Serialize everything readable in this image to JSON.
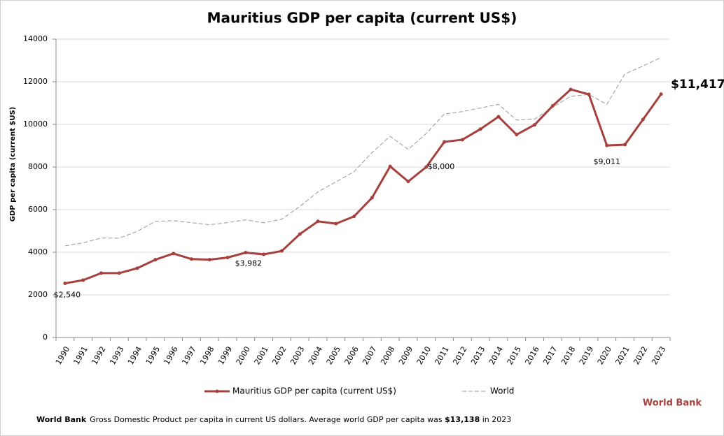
{
  "chart_data": {
    "type": "line",
    "title": "Mauritius GDP per capita (current US$)",
    "y_label": "GDP per capita (current $US)",
    "categories": [
      "1990",
      "1991",
      "1992",
      "1993",
      "1994",
      "1995",
      "1996",
      "1997",
      "1998",
      "1999",
      "2000",
      "2001",
      "2002",
      "2003",
      "2004",
      "2005",
      "2006",
      "2007",
      "2008",
      "2009",
      "2010",
      "2011",
      "2012",
      "2013",
      "2014",
      "2015",
      "2016",
      "2017",
      "2018",
      "2019",
      "2020",
      "2021",
      "2022",
      "2023"
    ],
    "series": [
      {
        "name": "Mauritius GDP per capita (current US$)",
        "color": "#a5403d",
        "style": "solid",
        "values": [
          2540,
          2690,
          3020,
          3020,
          3250,
          3650,
          3940,
          3680,
          3650,
          3750,
          3982,
          3900,
          4060,
          4850,
          5450,
          5340,
          5680,
          6560,
          8030,
          7320,
          8000,
          9180,
          9280,
          9780,
          10360,
          9520,
          9980,
          10870,
          11640,
          11410,
          9011,
          9050,
          10230,
          11417
        ],
        "value_labels": [
          "$2,540",
          null,
          null,
          null,
          null,
          null,
          null,
          null,
          null,
          null,
          "$3,982",
          null,
          null,
          null,
          null,
          null,
          null,
          null,
          null,
          null,
          "$8,000",
          null,
          null,
          null,
          null,
          null,
          null,
          null,
          null,
          null,
          "$9,011",
          null,
          null,
          "$11,417"
        ]
      },
      {
        "name": "World",
        "color": "#999999",
        "style": "dashed",
        "values": [
          4300,
          4440,
          4670,
          4660,
          4980,
          5450,
          5480,
          5390,
          5290,
          5390,
          5520,
          5380,
          5550,
          6150,
          6830,
          7300,
          7780,
          8680,
          9440,
          8830,
          9570,
          10490,
          10600,
          10770,
          10940,
          10200,
          10250,
          10800,
          11320,
          11400,
          10940,
          12370,
          12740,
          13138
        ]
      }
    ],
    "ylim": [
      0,
      14000
    ],
    "yticks": [
      0,
      2000,
      4000,
      6000,
      8000,
      10000,
      12000,
      14000
    ],
    "grid": true,
    "source": "World Bank",
    "footer": {
      "bold": "World Bank",
      "text": "Gross Domestic Product per capita in current US dollars.  Average world GDP per capita was ",
      "highlight": "$13,138",
      "tail": " in 2023"
    }
  }
}
